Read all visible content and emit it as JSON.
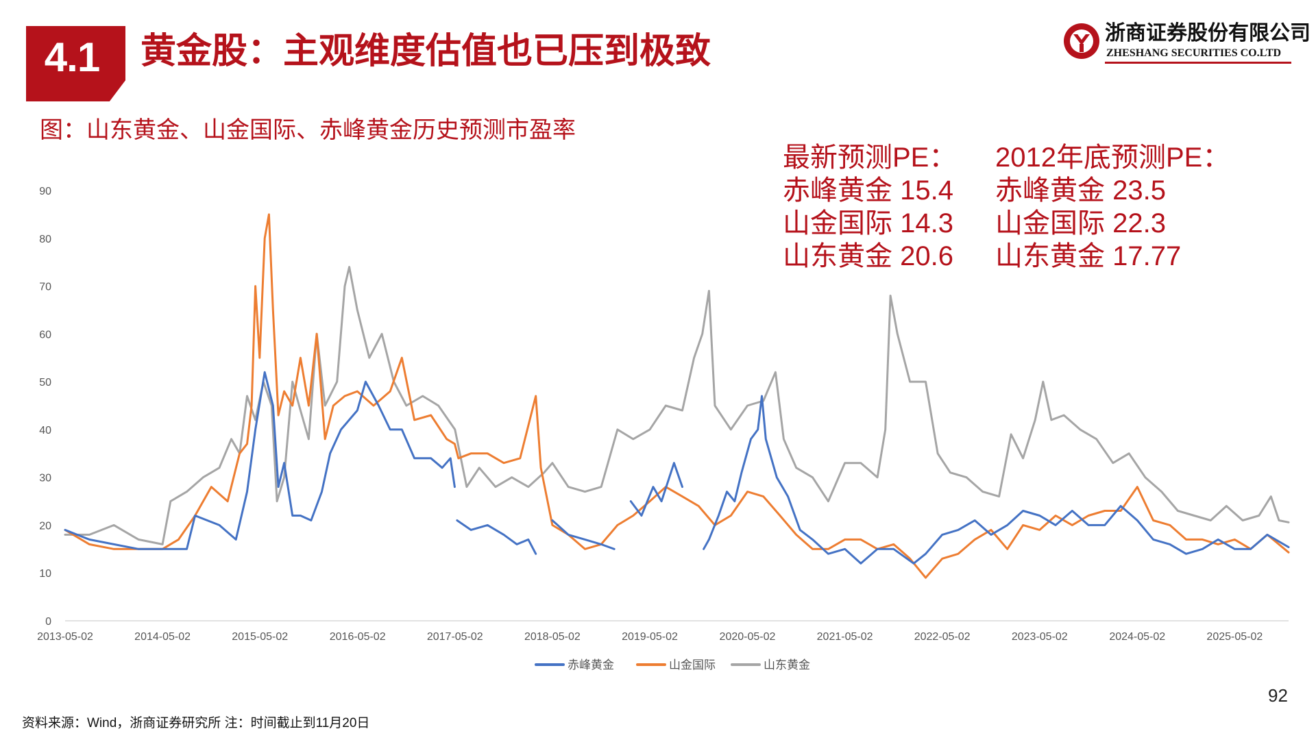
{
  "header": {
    "section_number": "4.1",
    "title": "黄金股：主观维度估值也已压到极致"
  },
  "logo": {
    "name_cn": "浙商证券股份有限公司",
    "name_en": "ZHESHANG SECURITIES CO.LTD",
    "brand_color": "#b5121b"
  },
  "figure_caption": "图：山东黄金、山金国际、赤峰黄金历史预测市盈率",
  "pe_panel": {
    "latest": {
      "heading": "最新预测PE：",
      "rows": [
        "赤峰黄金 15.4",
        "山金国际 14.3",
        "山东黄金 20.6"
      ]
    },
    "end2012": {
      "heading": "2012年底预测PE：",
      "rows": [
        "赤峰黄金 23.5",
        "山金国际 22.3",
        "山东黄金 17.77"
      ]
    }
  },
  "page_number": "92",
  "source_note": "资料来源：Wind，浙商证券研究所   注：时间截止到11月20日",
  "chart_data": {
    "type": "line",
    "title": "",
    "xlabel": "",
    "ylabel": "",
    "ylim": [
      0,
      90
    ],
    "yticks": [
      0,
      10,
      20,
      30,
      40,
      50,
      60,
      70,
      80,
      90
    ],
    "x_tick_labels": [
      "2013-05-02",
      "2014-05-02",
      "2015-05-02",
      "2016-05-02",
      "2017-05-02",
      "2018-05-02",
      "2019-05-02",
      "2020-05-02",
      "2021-05-02",
      "2022-05-02",
      "2023-05-02",
      "2024-05-02",
      "2025-05-02"
    ],
    "xlim": [
      "2013-05-02",
      "2025-11-20"
    ],
    "grid": false,
    "legend_position": "bottom",
    "series": [
      {
        "name": "赤峰黄金",
        "color": "#4472c4",
        "points": [
          [
            "2013-05-02",
            19
          ],
          [
            "2013-08-01",
            17
          ],
          [
            "2013-11-01",
            16
          ],
          [
            "2014-02-01",
            15
          ],
          [
            "2014-05-02",
            15
          ],
          [
            "2014-08-01",
            15
          ],
          [
            "2014-09-01",
            22
          ],
          [
            "2014-12-01",
            20
          ],
          [
            "2015-02-01",
            17
          ],
          [
            "2015-03-15",
            27
          ],
          [
            "2015-04-15",
            40
          ],
          [
            "2015-05-20",
            52
          ],
          [
            "2015-06-20",
            45
          ],
          [
            "2015-07-10",
            28
          ],
          [
            "2015-08-01",
            33
          ],
          [
            "2015-09-01",
            22
          ],
          [
            "2015-10-01",
            22
          ],
          [
            "2015-11-10",
            21
          ],
          [
            "2015-12-20",
            27
          ],
          [
            "2016-01-20",
            35
          ],
          [
            "2016-03-01",
            40
          ],
          [
            "2016-05-01",
            44
          ],
          [
            "2016-06-01",
            50
          ],
          [
            "2016-07-20",
            45
          ],
          [
            "2016-09-01",
            40
          ],
          [
            "2016-10-15",
            40
          ],
          [
            "2016-12-01",
            34
          ],
          [
            "2017-02-01",
            34
          ],
          [
            "2017-03-15",
            32
          ],
          [
            "2017-04-15",
            34
          ],
          [
            "2017-05-01",
            28
          ],
          null,
          [
            "2017-05-10",
            21
          ],
          [
            "2017-07-01",
            19
          ],
          [
            "2017-09-01",
            20
          ],
          [
            "2017-11-01",
            18
          ],
          [
            "2017-12-20",
            16
          ],
          [
            "2018-02-01",
            17
          ],
          [
            "2018-03-01",
            14
          ],
          null,
          [
            "2018-05-02",
            21
          ],
          [
            "2018-07-01",
            18
          ],
          [
            "2018-09-01",
            17
          ],
          [
            "2018-11-01",
            16
          ],
          [
            "2018-12-20",
            15
          ],
          null,
          [
            "2019-02-20",
            25
          ],
          [
            "2019-04-01",
            22
          ],
          [
            "2019-05-15",
            28
          ],
          [
            "2019-06-15",
            25
          ],
          [
            "2019-08-01",
            33
          ],
          [
            "2019-09-01",
            28
          ],
          null,
          [
            "2019-11-20",
            15
          ],
          [
            "2019-12-10",
            17
          ],
          [
            "2020-01-15",
            22
          ],
          [
            "2020-02-15",
            27
          ],
          [
            "2020-03-15",
            25
          ],
          [
            "2020-04-10",
            31
          ],
          [
            "2020-05-15",
            38
          ],
          [
            "2020-06-10",
            40
          ],
          [
            "2020-06-25",
            47
          ],
          [
            "2020-07-10",
            38
          ],
          [
            "2020-08-20",
            30
          ],
          [
            "2020-10-01",
            26
          ],
          [
            "2020-11-15",
            19
          ],
          [
            "2021-01-01",
            17
          ],
          [
            "2021-03-01",
            14
          ],
          [
            "2021-05-02",
            15
          ],
          [
            "2021-07-01",
            12
          ],
          [
            "2021-09-01",
            15
          ],
          [
            "2021-11-01",
            15
          ],
          [
            "2022-01-15",
            12
          ],
          [
            "2022-03-01",
            14
          ],
          [
            "2022-05-02",
            18
          ],
          [
            "2022-07-01",
            19
          ],
          [
            "2022-09-01",
            21
          ],
          [
            "2022-11-01",
            18
          ],
          [
            "2023-01-01",
            20
          ],
          [
            "2023-03-01",
            23
          ],
          [
            "2023-05-02",
            22
          ],
          [
            "2023-07-01",
            20
          ],
          [
            "2023-09-01",
            23
          ],
          [
            "2023-11-01",
            20
          ],
          [
            "2024-01-01",
            20
          ],
          [
            "2024-03-01",
            24
          ],
          [
            "2024-05-02",
            21
          ],
          [
            "2024-07-01",
            17
          ],
          [
            "2024-09-01",
            16
          ],
          [
            "2024-11-01",
            14
          ],
          [
            "2025-01-01",
            15
          ],
          [
            "2025-03-01",
            17
          ],
          [
            "2025-05-02",
            15
          ],
          [
            "2025-07-01",
            15
          ],
          [
            "2025-09-01",
            18
          ],
          [
            "2025-11-20",
            15.4
          ]
        ]
      },
      {
        "name": "山金国际",
        "color": "#ed7d31",
        "points": [
          [
            "2013-05-02",
            19
          ],
          [
            "2013-08-01",
            16
          ],
          [
            "2013-11-01",
            15
          ],
          [
            "2014-02-01",
            15
          ],
          [
            "2014-05-02",
            15
          ],
          [
            "2014-07-01",
            17
          ],
          [
            "2014-09-01",
            22
          ],
          [
            "2014-11-01",
            28
          ],
          [
            "2015-01-01",
            25
          ],
          [
            "2015-02-15",
            35
          ],
          [
            "2015-03-15",
            37
          ],
          [
            "2015-04-01",
            45
          ],
          [
            "2015-04-15",
            70
          ],
          [
            "2015-05-01",
            55
          ],
          [
            "2015-05-20",
            80
          ],
          [
            "2015-06-05",
            85
          ],
          [
            "2015-06-20",
            65
          ],
          [
            "2015-07-10",
            43
          ],
          [
            "2015-08-01",
            48
          ],
          [
            "2015-09-01",
            45
          ],
          [
            "2015-10-01",
            55
          ],
          [
            "2015-11-01",
            45
          ],
          [
            "2015-12-01",
            60
          ],
          [
            "2016-01-01",
            38
          ],
          [
            "2016-02-01",
            45
          ],
          [
            "2016-03-15",
            47
          ],
          [
            "2016-05-01",
            48
          ],
          [
            "2016-07-01",
            45
          ],
          [
            "2016-09-01",
            48
          ],
          [
            "2016-10-15",
            55
          ],
          [
            "2016-12-01",
            42
          ],
          [
            "2017-02-01",
            43
          ],
          [
            "2017-04-01",
            38
          ],
          [
            "2017-05-01",
            37
          ],
          [
            "2017-05-15",
            34
          ],
          [
            "2017-07-01",
            35
          ],
          [
            "2017-09-01",
            35
          ],
          [
            "2017-11-01",
            33
          ],
          [
            "2018-01-01",
            34
          ],
          [
            "2018-03-01",
            47
          ],
          [
            "2018-03-20",
            32
          ],
          [
            "2018-05-02",
            20
          ],
          [
            "2018-07-01",
            18
          ],
          [
            "2018-09-01",
            15
          ],
          [
            "2018-11-01",
            16
          ],
          [
            "2019-01-01",
            20
          ],
          [
            "2019-03-01",
            22
          ],
          [
            "2019-05-02",
            25
          ],
          [
            "2019-07-01",
            28
          ],
          [
            "2019-09-01",
            26
          ],
          [
            "2019-11-01",
            24
          ],
          [
            "2020-01-01",
            20
          ],
          [
            "2020-03-01",
            22
          ],
          [
            "2020-05-02",
            27
          ],
          [
            "2020-07-01",
            26
          ],
          [
            "2020-09-01",
            22
          ],
          [
            "2020-11-01",
            18
          ],
          [
            "2021-01-01",
            15
          ],
          [
            "2021-03-01",
            15
          ],
          [
            "2021-05-02",
            17
          ],
          [
            "2021-07-01",
            17
          ],
          [
            "2021-09-01",
            15
          ],
          [
            "2021-11-01",
            16
          ],
          [
            "2022-01-01",
            13
          ],
          [
            "2022-03-01",
            9
          ],
          [
            "2022-05-02",
            13
          ],
          [
            "2022-07-01",
            14
          ],
          [
            "2022-09-01",
            17
          ],
          [
            "2022-11-01",
            19
          ],
          [
            "2023-01-01",
            15
          ],
          [
            "2023-03-01",
            20
          ],
          [
            "2023-05-02",
            19
          ],
          [
            "2023-07-01",
            22
          ],
          [
            "2023-09-01",
            20
          ],
          [
            "2023-11-01",
            22
          ],
          [
            "2024-01-01",
            23
          ],
          [
            "2024-03-01",
            23
          ],
          [
            "2024-05-02",
            28
          ],
          [
            "2024-07-01",
            21
          ],
          [
            "2024-09-01",
            20
          ],
          [
            "2024-11-01",
            17
          ],
          [
            "2025-01-01",
            17
          ],
          [
            "2025-03-01",
            16
          ],
          [
            "2025-05-02",
            17
          ],
          [
            "2025-07-01",
            15
          ],
          [
            "2025-09-01",
            18
          ],
          [
            "2025-11-20",
            14.3
          ]
        ]
      },
      {
        "name": "山东黄金",
        "color": "#a5a5a5",
        "points": [
          [
            "2013-05-02",
            18
          ],
          [
            "2013-08-01",
            18
          ],
          [
            "2013-11-01",
            20
          ],
          [
            "2014-02-01",
            17
          ],
          [
            "2014-05-02",
            16
          ],
          [
            "2014-06-01",
            25
          ],
          [
            "2014-08-01",
            27
          ],
          [
            "2014-10-01",
            30
          ],
          [
            "2014-12-01",
            32
          ],
          [
            "2015-01-15",
            38
          ],
          [
            "2015-02-15",
            35
          ],
          [
            "2015-03-15",
            47
          ],
          [
            "2015-04-15",
            42
          ],
          [
            "2015-05-15",
            50
          ],
          [
            "2015-06-15",
            45
          ],
          [
            "2015-07-05",
            25
          ],
          [
            "2015-08-01",
            30
          ],
          [
            "2015-09-01",
            50
          ],
          [
            "2015-10-01",
            44
          ],
          [
            "2015-11-01",
            38
          ],
          [
            "2015-12-01",
            60
          ],
          [
            "2016-01-01",
            45
          ],
          [
            "2016-02-15",
            50
          ],
          [
            "2016-03-15",
            70
          ],
          [
            "2016-04-01",
            74
          ],
          [
            "2016-05-01",
            65
          ],
          [
            "2016-06-15",
            55
          ],
          [
            "2016-08-01",
            60
          ],
          [
            "2016-09-15",
            50
          ],
          [
            "2016-11-01",
            45
          ],
          [
            "2017-01-01",
            47
          ],
          [
            "2017-03-01",
            45
          ],
          [
            "2017-05-02",
            40
          ],
          [
            "2017-06-15",
            28
          ],
          [
            "2017-08-01",
            32
          ],
          [
            "2017-10-01",
            28
          ],
          [
            "2017-12-01",
            30
          ],
          [
            "2018-02-01",
            28
          ],
          [
            "2018-04-01",
            31
          ],
          [
            "2018-05-02",
            33
          ],
          [
            "2018-07-01",
            28
          ],
          [
            "2018-09-01",
            27
          ],
          [
            "2018-11-01",
            28
          ],
          [
            "2019-01-01",
            40
          ],
          [
            "2019-03-01",
            38
          ],
          [
            "2019-05-02",
            40
          ],
          [
            "2019-07-01",
            45
          ],
          [
            "2019-09-01",
            44
          ],
          [
            "2019-10-15",
            55
          ],
          [
            "2019-11-15",
            60
          ],
          [
            "2019-12-10",
            69
          ],
          [
            "2020-01-01",
            45
          ],
          [
            "2020-03-01",
            40
          ],
          [
            "2020-05-02",
            45
          ],
          [
            "2020-07-01",
            46
          ],
          [
            "2020-08-15",
            52
          ],
          [
            "2020-09-15",
            38
          ],
          [
            "2020-11-01",
            32
          ],
          [
            "2021-01-01",
            30
          ],
          [
            "2021-03-01",
            25
          ],
          [
            "2021-05-02",
            33
          ],
          [
            "2021-07-01",
            33
          ],
          [
            "2021-09-01",
            30
          ],
          [
            "2021-10-01",
            40
          ],
          [
            "2021-10-20",
            68
          ],
          [
            "2021-11-15",
            60
          ],
          [
            "2022-01-01",
            50
          ],
          [
            "2022-03-01",
            50
          ],
          [
            "2022-04-15",
            35
          ],
          [
            "2022-06-01",
            31
          ],
          [
            "2022-08-01",
            30
          ],
          [
            "2022-10-01",
            27
          ],
          [
            "2022-12-01",
            26
          ],
          [
            "2023-01-15",
            39
          ],
          [
            "2023-03-01",
            34
          ],
          [
            "2023-04-15",
            42
          ],
          [
            "2023-05-15",
            50
          ],
          [
            "2023-06-15",
            42
          ],
          [
            "2023-08-01",
            43
          ],
          [
            "2023-10-01",
            40
          ],
          [
            "2023-12-01",
            38
          ],
          [
            "2024-02-01",
            33
          ],
          [
            "2024-04-01",
            35
          ],
          [
            "2024-06-01",
            30
          ],
          [
            "2024-08-01",
            27
          ],
          [
            "2024-10-01",
            23
          ],
          [
            "2024-12-01",
            22
          ],
          [
            "2025-02-01",
            21
          ],
          [
            "2025-04-01",
            24
          ],
          [
            "2025-06-01",
            21
          ],
          [
            "2025-08-01",
            22
          ],
          [
            "2025-09-15",
            26
          ],
          [
            "2025-10-15",
            21
          ],
          [
            "2025-11-20",
            20.6
          ]
        ]
      }
    ]
  }
}
